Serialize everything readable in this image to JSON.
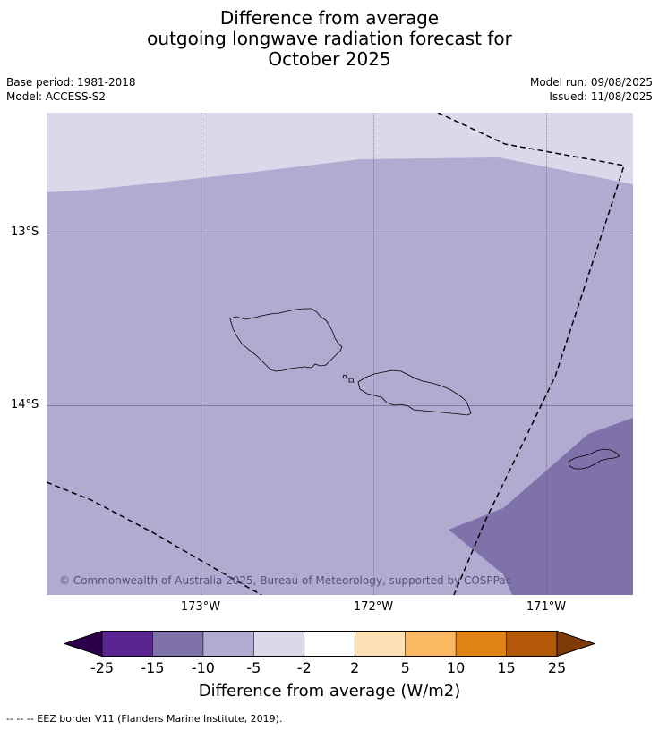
{
  "title": {
    "line1": "Difference from average",
    "line2": "outgoing longwave radiation forecast for",
    "line3": "October 2025"
  },
  "meta": {
    "base_period": "Base period: 1981-2018",
    "model": "Model: ACCESS-S2",
    "model_run": "Model run: 09/08/2025",
    "issued": "Issued: 11/08/2025"
  },
  "map": {
    "lat_labels": [
      "13°S",
      "14°S"
    ],
    "lon_labels": [
      "173°W",
      "172°W",
      "171°W"
    ],
    "copyright": "© Commonwealth of Australia 2025, Bureau of Meteorology, supported by COSPPac",
    "fill_colors": {
      "-5_to_-2": "#d9d9ea",
      "-10_to_-5": "#b1abd2",
      "-15_to_-10": "#7f72ab"
    }
  },
  "colorbar": {
    "ticks": [
      "-25",
      "-15",
      "-10",
      "-5",
      "-2",
      "2",
      "5",
      "10",
      "15",
      "25"
    ],
    "colors": [
      "#2d004b",
      "#5b2591",
      "#7f72ab",
      "#b1abd2",
      "#d9d9ea",
      "#ffffff",
      "#fde1b5",
      "#fbb862",
      "#e08214",
      "#b35806",
      "#7f3b08"
    ],
    "label": "Difference from average (W/m2)"
  },
  "footnote": "--  --  -- EEZ border V11 (Flanders Marine Institute, 2019)."
}
